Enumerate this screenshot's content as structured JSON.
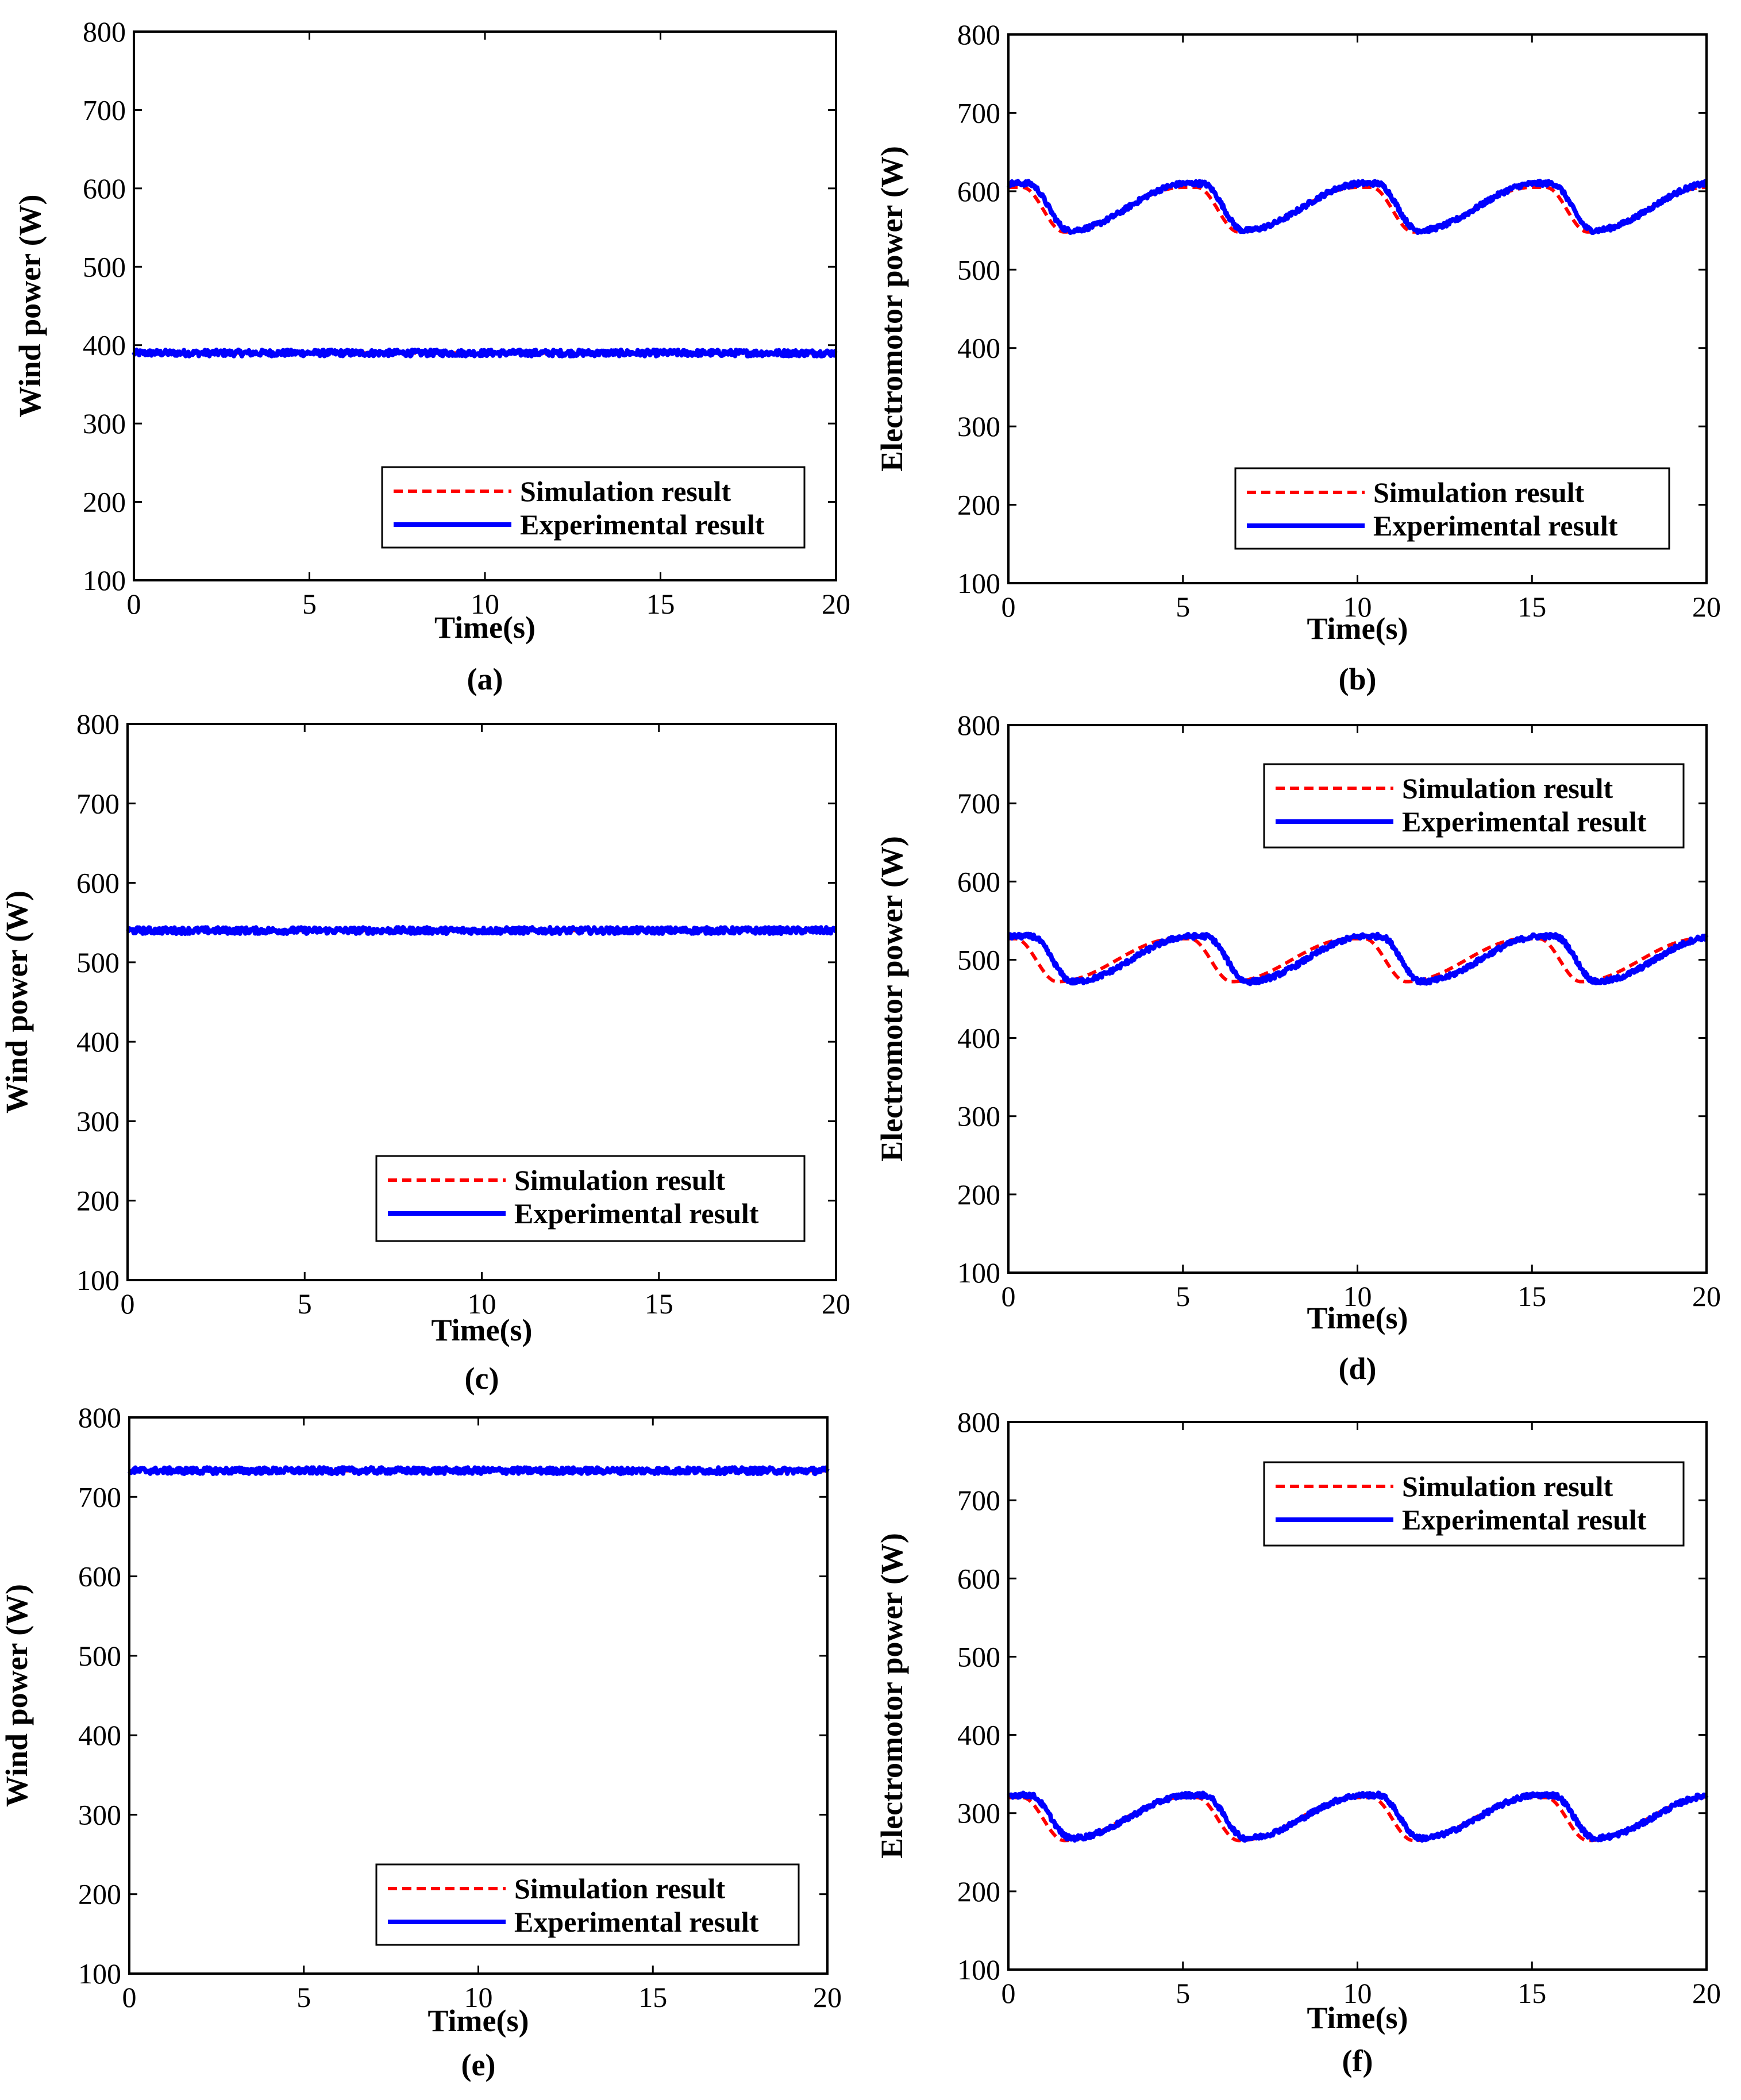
{
  "colors": {
    "simulation": "#ff0000",
    "experimental": "#0000ff",
    "axes": "#000000",
    "background": "#ffffff"
  },
  "chart_data": [
    {
      "id": "a",
      "type": "line",
      "panel_label": "(a)",
      "xlabel": "Time(s)",
      "ylabel": "Wind power (W)",
      "xlim": [
        0,
        20
      ],
      "ylim": [
        100,
        800
      ],
      "xticks": [
        "0",
        "5",
        "10",
        "15",
        "20"
      ],
      "yticks": [
        "100",
        "200",
        "300",
        "400",
        "500",
        "600",
        "700",
        "800"
      ],
      "grid": false,
      "legend_position": "bottom-right",
      "series": [
        {
          "name": "Simulation result",
          "style": "dashed",
          "profile": "constant",
          "level": 390,
          "noise": 0
        },
        {
          "name": "Experimental result",
          "style": "solid",
          "profile": "constant",
          "level": 390,
          "noise": 4
        }
      ]
    },
    {
      "id": "b",
      "type": "line",
      "panel_label": "(b)",
      "xlabel": "Time(s)",
      "ylabel": "Electromotor power (W)",
      "xlim": [
        0,
        20
      ],
      "ylim": [
        100,
        800
      ],
      "xticks": [
        "0",
        "5",
        "10",
        "15",
        "20"
      ],
      "yticks": [
        "100",
        "200",
        "300",
        "400",
        "500",
        "600",
        "700",
        "800"
      ],
      "grid": false,
      "legend_position": "bottom-right",
      "series": [
        {
          "name": "Simulation result",
          "style": "dashed",
          "profile": "wave",
          "high": 605,
          "low": 548,
          "shift": 0,
          "noise": 0
        },
        {
          "name": "Experimental result",
          "style": "solid",
          "profile": "wave",
          "high": 610,
          "low": 550,
          "shift": 0.15,
          "noise": 3
        }
      ]
    },
    {
      "id": "c",
      "type": "line",
      "panel_label": "(c)",
      "xlabel": "Time(s)",
      "ylabel": "Wind power (W)",
      "xlim": [
        0,
        20
      ],
      "ylim": [
        100,
        800
      ],
      "xticks": [
        "0",
        "5",
        "10",
        "15",
        "20"
      ],
      "yticks": [
        "100",
        "200",
        "300",
        "400",
        "500",
        "600",
        "700",
        "800"
      ],
      "grid": false,
      "legend_position": "bottom-right",
      "series": [
        {
          "name": "Simulation result",
          "style": "dashed",
          "profile": "constant",
          "level": 540,
          "noise": 0
        },
        {
          "name": "Experimental result",
          "style": "solid",
          "profile": "constant",
          "level": 540,
          "noise": 4
        }
      ]
    },
    {
      "id": "d",
      "type": "line",
      "panel_label": "(d)",
      "xlabel": "Time(s)",
      "ylabel": "Electromotor power (W)",
      "xlim": [
        0,
        20
      ],
      "ylim": [
        100,
        800
      ],
      "xticks": [
        "0",
        "5",
        "10",
        "15",
        "20"
      ],
      "yticks": [
        "100",
        "200",
        "300",
        "400",
        "500",
        "600",
        "700",
        "800"
      ],
      "grid": false,
      "legend_position": "top-right",
      "series": [
        {
          "name": "Simulation result",
          "style": "dashed",
          "profile": "wave",
          "high": 527,
          "low": 472,
          "shift": -0.2,
          "noise": 0
        },
        {
          "name": "Experimental result",
          "style": "solid",
          "profile": "wave",
          "high": 530,
          "low": 472,
          "shift": 0.25,
          "noise": 3
        }
      ]
    },
    {
      "id": "e",
      "type": "line",
      "panel_label": "(e)",
      "xlabel": "Time(s)",
      "ylabel": "Wind power (W)",
      "xlim": [
        0,
        20
      ],
      "ylim": [
        100,
        800
      ],
      "xticks": [
        "0",
        "5",
        "10",
        "15",
        "20"
      ],
      "yticks": [
        "100",
        "200",
        "300",
        "400",
        "500",
        "600",
        "700",
        "800"
      ],
      "grid": false,
      "legend_position": "bottom-right",
      "series": [
        {
          "name": "Simulation result",
          "style": "dashed",
          "profile": "constant",
          "level": 733,
          "noise": 0
        },
        {
          "name": "Experimental result",
          "style": "solid",
          "profile": "constant",
          "level": 733,
          "noise": 4
        }
      ]
    },
    {
      "id": "f",
      "type": "line",
      "panel_label": "(f)",
      "xlabel": "Time(s)",
      "ylabel": "Electromotor power (W)",
      "xlim": [
        0,
        20
      ],
      "ylim": [
        100,
        800
      ],
      "xticks": [
        "0",
        "5",
        "10",
        "15",
        "20"
      ],
      "yticks": [
        "100",
        "200",
        "300",
        "400",
        "500",
        "600",
        "700",
        "800"
      ],
      "grid": false,
      "legend_position": "top-right",
      "series": [
        {
          "name": "Simulation result",
          "style": "dashed",
          "profile": "wave",
          "high": 320,
          "low": 265,
          "shift": 0,
          "noise": 0
        },
        {
          "name": "Experimental result",
          "style": "solid",
          "profile": "wave",
          "high": 323,
          "low": 268,
          "shift": 0.2,
          "noise": 3
        }
      ]
    }
  ]
}
